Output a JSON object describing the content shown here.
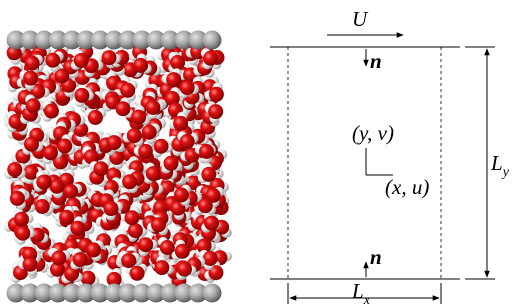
{
  "diagram": {
    "velocity_label": "U",
    "top_normal": "n",
    "vertical_axis": "(y, v)",
    "horizontal_axis": "(x, u)",
    "bottom_normal": "n",
    "height_label": {
      "base": "L",
      "sub": "y"
    },
    "width_label": {
      "base": "L",
      "sub": "x"
    }
  }
}
